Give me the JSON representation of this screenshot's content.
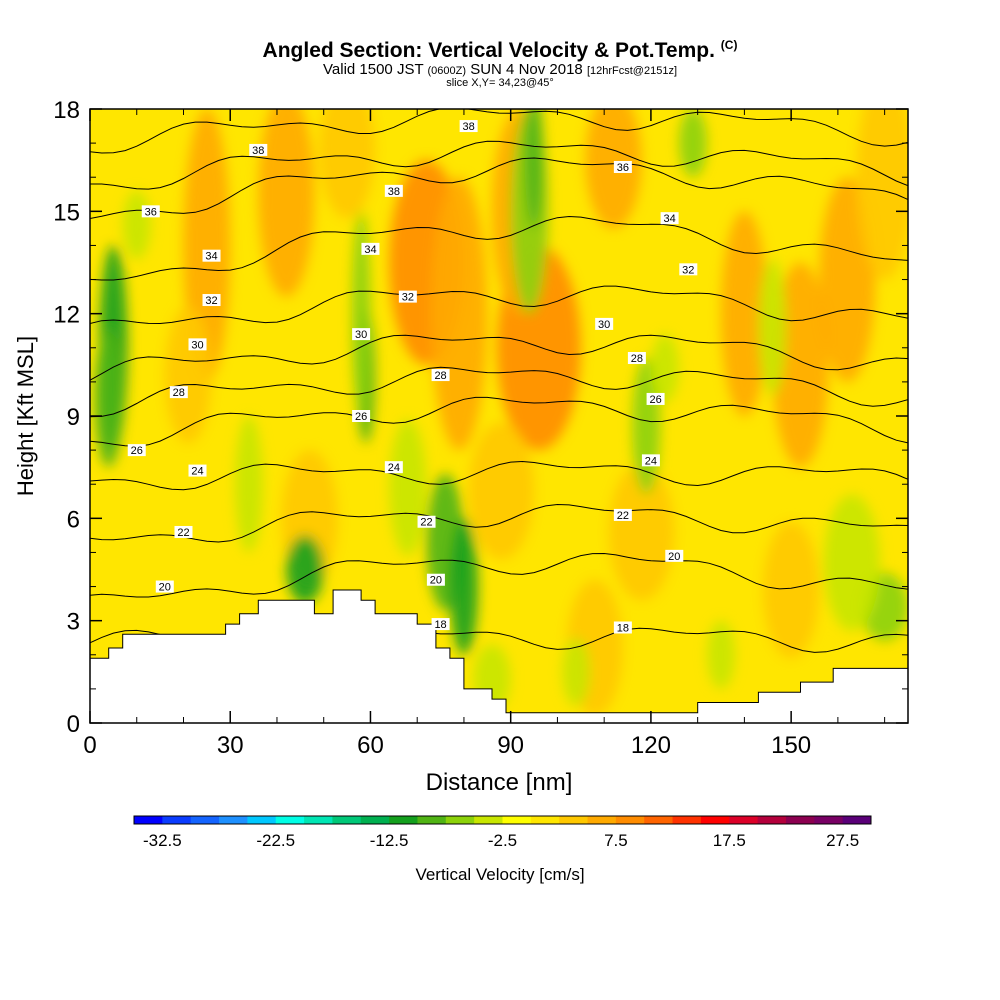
{
  "title": "Angled Section: Vertical Velocity & Pot.Temp.",
  "title_mark": "(C)",
  "valid": {
    "prefix": "Valid 1500 JST",
    "utc": "(0600Z)",
    "date": "SUN 4 Nov 2018",
    "fcst": "[12hrFcst@2151z]"
  },
  "slice": "slice X,Y= 34,23@45°",
  "colorbar": {
    "label": "Vertical Velocity [cm/s]",
    "ticks": [
      "-32.5",
      "-22.5",
      "-12.5",
      "-2.5",
      "7.5",
      "17.5",
      "27.5"
    ],
    "colors": [
      "#0000ff",
      "#0a3cff",
      "#1464ff",
      "#1e90ff",
      "#00c8ff",
      "#00ffe6",
      "#00e6b4",
      "#00c878",
      "#00b050",
      "#14a01e",
      "#50b414",
      "#8cd20a",
      "#c8e600",
      "#ffff00",
      "#ffe600",
      "#ffc800",
      "#ffaa00",
      "#ff8c00",
      "#ff6400",
      "#ff3200",
      "#ff0000",
      "#dc0028",
      "#b4003c",
      "#8c0050",
      "#780064",
      "#5a0078"
    ]
  },
  "chart_data": {
    "type": "heatmap",
    "title": "Angled Section: Vertical Velocity & Pot.Temp.",
    "xlabel": "Distance [nm]",
    "ylabel": "Height [Kft MSL]",
    "xlim": [
      0,
      175
    ],
    "ylim": [
      0,
      18
    ],
    "x_ticks": [
      "0",
      "30",
      "60",
      "90",
      "120",
      "150"
    ],
    "y_ticks": [
      "0",
      "3",
      "6",
      "9",
      "12",
      "15",
      "18"
    ],
    "fill_variable": "Vertical Velocity [cm/s]",
    "contour_variable": "Potential Temperature",
    "terrain_profile": [
      [
        0,
        1.9
      ],
      [
        4,
        1.9
      ],
      [
        4,
        2.2
      ],
      [
        7,
        2.2
      ],
      [
        7,
        2.6
      ],
      [
        12,
        2.6
      ],
      [
        12,
        2.6
      ],
      [
        24,
        2.6
      ],
      [
        29,
        2.6
      ],
      [
        29,
        2.9
      ],
      [
        32,
        2.9
      ],
      [
        32,
        3.2
      ],
      [
        36,
        3.2
      ],
      [
        36,
        3.6
      ],
      [
        48,
        3.6
      ],
      [
        48,
        3.2
      ],
      [
        52,
        3.2
      ],
      [
        52,
        3.9
      ],
      [
        58,
        3.9
      ],
      [
        58,
        3.6
      ],
      [
        61,
        3.6
      ],
      [
        61,
        3.2
      ],
      [
        70,
        3.2
      ],
      [
        70,
        2.9
      ],
      [
        74,
        2.9
      ],
      [
        74,
        2.2
      ],
      [
        77,
        2.2
      ],
      [
        77,
        1.9
      ],
      [
        80,
        1.9
      ],
      [
        80,
        1.0
      ],
      [
        86,
        1.0
      ],
      [
        86,
        0.7
      ],
      [
        89,
        0.7
      ],
      [
        89,
        0.3
      ],
      [
        130,
        0.3
      ],
      [
        130,
        0.6
      ],
      [
        143,
        0.6
      ],
      [
        143,
        0.9
      ],
      [
        152,
        0.9
      ],
      [
        152,
        1.2
      ],
      [
        159,
        1.2
      ],
      [
        159,
        1.6
      ],
      [
        175,
        1.6
      ]
    ],
    "updrafts": [
      [
        25,
        14.0,
        5,
        4,
        6
      ],
      [
        42,
        15.5,
        6,
        3,
        7
      ],
      [
        55,
        16.8,
        6,
        2,
        5
      ],
      [
        72,
        13.5,
        8,
        3,
        9
      ],
      [
        79,
        12.0,
        6,
        4,
        8
      ],
      [
        96,
        11.0,
        9,
        3,
        9
      ],
      [
        92,
        15.0,
        6,
        3,
        6
      ],
      [
        112,
        16.5,
        6,
        2,
        6
      ],
      [
        140,
        12.0,
        5,
        3,
        7
      ],
      [
        152,
        10.5,
        6,
        3,
        6
      ],
      [
        162,
        13.0,
        6,
        3,
        6
      ],
      [
        170,
        16.0,
        6,
        3,
        5
      ],
      [
        21,
        10.2,
        5,
        2,
        4
      ],
      [
        47,
        6.0,
        6,
        2,
        4
      ],
      [
        88,
        6.8,
        7,
        2,
        5
      ],
      [
        118,
        5.6,
        7,
        2,
        4
      ],
      [
        150,
        3.9,
        6,
        2,
        4
      ],
      [
        108,
        2.2,
        6,
        2,
        4
      ],
      [
        9,
        0.0,
        0,
        0,
        0
      ]
    ],
    "downdrafts": [
      [
        5,
        11.0,
        3,
        3,
        -12
      ],
      [
        4,
        9.5,
        3,
        2,
        -9
      ],
      [
        46,
        4.5,
        4,
        1,
        -12
      ],
      [
        76,
        5.3,
        4,
        2,
        -11
      ],
      [
        80,
        4.0,
        3,
        2,
        -12
      ],
      [
        59,
        10.2,
        2,
        2,
        -9
      ],
      [
        58,
        12.0,
        2,
        3,
        -7
      ],
      [
        94,
        15.0,
        4,
        3,
        -6
      ],
      [
        95,
        16.5,
        2,
        2,
        -9
      ],
      [
        129,
        17.0,
        3,
        1,
        -7
      ],
      [
        119,
        8.7,
        3,
        2,
        -7
      ],
      [
        123,
        10.4,
        3,
        1,
        -5
      ],
      [
        170,
        3.4,
        5,
        1,
        -8
      ],
      [
        163,
        4.7,
        6,
        2,
        -4
      ],
      [
        146,
        11.6,
        3,
        2,
        -4
      ],
      [
        34,
        7.0,
        3,
        2,
        -3
      ],
      [
        68,
        6.9,
        4,
        2,
        -5
      ],
      [
        104,
        1.5,
        3,
        1,
        -4
      ],
      [
        86,
        1.3,
        4,
        1,
        -5
      ],
      [
        135,
        2.0,
        3,
        1,
        -4
      ],
      [
        10,
        14.6,
        3,
        1,
        -3
      ]
    ],
    "theta_contours": [
      {
        "value": "18",
        "label_x": 74,
        "y0": 2.35,
        "y1": 2.55
      },
      {
        "value": "20",
        "label_x": 74,
        "y0": 3.4,
        "y1": 4.75
      },
      {
        "value": "22",
        "label_x": 73,
        "y0": 5.3,
        "y1": 6.15
      },
      {
        "value": "24",
        "label_x": 64,
        "y0": 7.1,
        "y1": 7.4
      },
      {
        "value": "26",
        "label_x": 58,
        "y0": 8.3,
        "y1": 9.3
      },
      {
        "value": "28",
        "label_x": 74,
        "y0": 9.3,
        "y1": 10.2
      },
      {
        "value": "30",
        "label_x": 58,
        "y0": 10.2,
        "y1": 11.2
      },
      {
        "value": "32",
        "label_x": 68,
        "y0": 11.4,
        "y1": 12.6
      },
      {
        "value": "34",
        "label_x": 60,
        "y0": 12.8,
        "y1": 14.6
      },
      {
        "value": "36",
        "label_x": 16,
        "y0": 14.8,
        "y1": 16.3
      },
      {
        "value": "36",
        "label_x": 68,
        "y0": 15.8,
        "y1": 16.8
      },
      {
        "value": "38",
        "label_x": 81,
        "y0": 17.0,
        "y1": 17.8
      }
    ],
    "contour_labels": [
      {
        "text": "38",
        "x": 81,
        "y": 17.5
      },
      {
        "text": "38",
        "x": 36,
        "y": 16.8
      },
      {
        "text": "38",
        "x": 65,
        "y": 15.6
      },
      {
        "text": "36",
        "x": 13,
        "y": 15.0
      },
      {
        "text": "36",
        "x": 114,
        "y": 16.3
      },
      {
        "text": "34",
        "x": 26,
        "y": 13.7
      },
      {
        "text": "34",
        "x": 60,
        "y": 13.9
      },
      {
        "text": "34",
        "x": 124,
        "y": 14.8
      },
      {
        "text": "32",
        "x": 26,
        "y": 12.4
      },
      {
        "text": "32",
        "x": 68,
        "y": 12.5
      },
      {
        "text": "32",
        "x": 128,
        "y": 13.3
      },
      {
        "text": "30",
        "x": 23,
        "y": 11.1
      },
      {
        "text": "30",
        "x": 58,
        "y": 11.4
      },
      {
        "text": "30",
        "x": 110,
        "y": 11.7
      },
      {
        "text": "28",
        "x": 19,
        "y": 9.7
      },
      {
        "text": "28",
        "x": 75,
        "y": 10.2
      },
      {
        "text": "28",
        "x": 117,
        "y": 10.7
      },
      {
        "text": "26",
        "x": 10,
        "y": 8.0
      },
      {
        "text": "26",
        "x": 58,
        "y": 9.0
      },
      {
        "text": "26",
        "x": 121,
        "y": 9.5
      },
      {
        "text": "24",
        "x": 23,
        "y": 7.4
      },
      {
        "text": "24",
        "x": 65,
        "y": 7.5
      },
      {
        "text": "24",
        "x": 120,
        "y": 7.7
      },
      {
        "text": "22",
        "x": 20,
        "y": 5.6
      },
      {
        "text": "22",
        "x": 72,
        "y": 5.9
      },
      {
        "text": "22",
        "x": 114,
        "y": 6.1
      },
      {
        "text": "20",
        "x": 16,
        "y": 4.0
      },
      {
        "text": "20",
        "x": 74,
        "y": 4.2
      },
      {
        "text": "20",
        "x": 125,
        "y": 4.9
      },
      {
        "text": "18",
        "x": 75,
        "y": 2.9
      },
      {
        "text": "18",
        "x": 114,
        "y": 2.8
      }
    ]
  }
}
